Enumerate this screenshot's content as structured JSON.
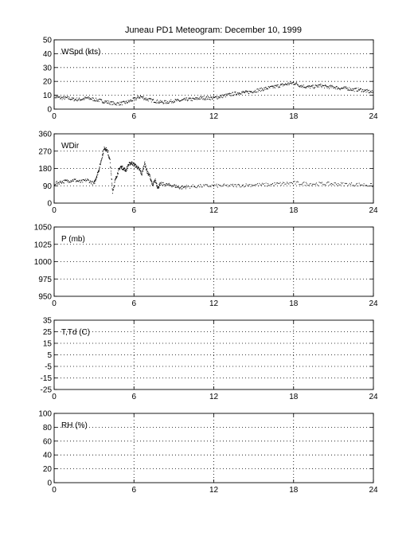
{
  "title": "Juneau PD1 Meteogram:   December 10, 1999",
  "chart_data": [
    {
      "type": "scatter",
      "label": "WSpd (kts)",
      "xlim": [
        0,
        24
      ],
      "ylim": [
        0,
        50
      ],
      "xticks": [
        0,
        6,
        12,
        18,
        24
      ],
      "yticks": [
        0,
        10,
        20,
        30,
        40,
        50
      ],
      "grid": true,
      "series": [
        {
          "x": [
            0,
            0.5,
            1,
            1.5,
            2,
            2.5,
            3,
            3.5,
            4,
            4.5,
            5,
            5.5,
            6,
            6.5,
            7,
            7.5,
            8,
            8.5,
            9,
            9.5,
            10,
            10.5,
            11,
            11.5,
            12,
            12.5,
            13,
            13.5,
            14,
            14.5,
            15,
            15.5,
            16,
            16.5,
            17,
            17.5,
            18,
            18.5,
            19,
            19.5,
            20,
            20.5,
            21,
            21.5,
            22,
            22.5,
            23,
            23.5,
            24
          ],
          "y": [
            9,
            8,
            8,
            7,
            7,
            8,
            7,
            6,
            5,
            4,
            4,
            5,
            7,
            9,
            7,
            6,
            5,
            5,
            6,
            6,
            7,
            7,
            8,
            8,
            8,
            9,
            10,
            11,
            12,
            12,
            13,
            14,
            15,
            16,
            17,
            18,
            19,
            17,
            16,
            16,
            17,
            16,
            16,
            15,
            15,
            14,
            14,
            13,
            12
          ]
        }
      ]
    },
    {
      "type": "scatter",
      "label": "WDir",
      "xlim": [
        0,
        24
      ],
      "ylim": [
        0,
        360
      ],
      "xticks": [
        0,
        6,
        12,
        18,
        24
      ],
      "yticks": [
        0,
        90,
        180,
        270,
        360
      ],
      "grid": true,
      "series": [
        {
          "x": [
            0,
            0.5,
            1,
            1.5,
            2,
            2.5,
            3,
            3.2,
            3.4,
            3.6,
            3.8,
            4,
            4.2,
            4.4,
            4.6,
            4.8,
            5,
            5.2,
            5.4,
            5.6,
            5.8,
            6,
            6.2,
            6.4,
            6.6,
            6.8,
            7,
            7.2,
            7.4,
            7.6,
            7.8,
            8,
            8.5,
            9,
            9.5,
            10,
            11,
            12,
            13,
            14,
            15,
            16,
            17,
            18,
            19,
            20,
            21,
            22,
            23,
            24
          ],
          "y": [
            100,
            110,
            115,
            120,
            110,
            120,
            100,
            140,
            180,
            240,
            290,
            270,
            220,
            60,
            120,
            160,
            190,
            180,
            170,
            200,
            210,
            200,
            190,
            175,
            150,
            210,
            160,
            140,
            90,
            120,
            80,
            100,
            95,
            90,
            80,
            85,
            88,
            90,
            90,
            92,
            95,
            95,
            100,
            105,
            100,
            100,
            100,
            98,
            96,
            92
          ]
        }
      ]
    },
    {
      "type": "scatter",
      "label": "P (mb)",
      "xlim": [
        0,
        24
      ],
      "ylim": [
        950,
        1050
      ],
      "xticks": [
        0,
        6,
        12,
        18,
        24
      ],
      "yticks": [
        950,
        975,
        1000,
        1025,
        1050
      ],
      "grid": true,
      "series": []
    },
    {
      "type": "scatter",
      "label": "T,Td (C)",
      "xlim": [
        0,
        24
      ],
      "ylim": [
        -25,
        35
      ],
      "xticks": [
        0,
        6,
        12,
        18,
        24
      ],
      "yticks": [
        -25,
        -15,
        -5,
        5,
        15,
        25,
        35
      ],
      "grid": true,
      "series": []
    },
    {
      "type": "scatter",
      "label": "RH (%)",
      "xlim": [
        0,
        24
      ],
      "ylim": [
        0,
        100
      ],
      "xticks": [
        0,
        6,
        12,
        18,
        24
      ],
      "yticks": [
        0,
        20,
        40,
        60,
        80,
        100
      ],
      "grid": true,
      "series": []
    }
  ]
}
